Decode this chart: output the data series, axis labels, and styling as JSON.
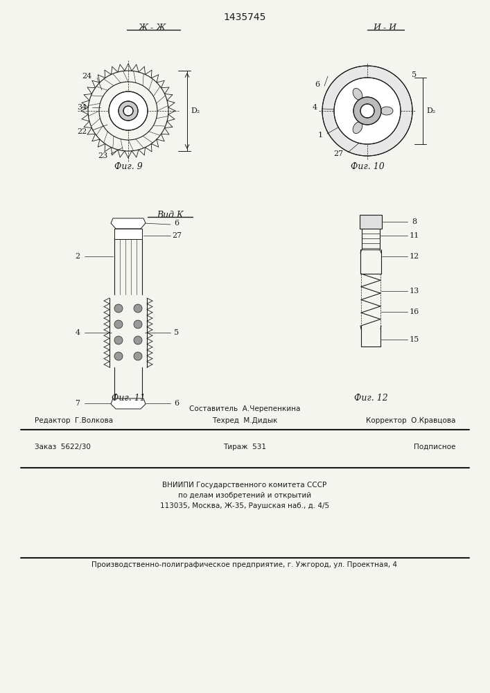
{
  "title": "1435745",
  "bg_color": "#f5f5f0",
  "line_color": "#1a1a1a",
  "fig9_label": "Фиг. 9",
  "fig10_label": "Фиг. 10",
  "fig11_label": "Фиг. 11",
  "fig12_label": "Фиг. 12",
  "section_zh": "Ж - Ж",
  "section_i": "И - И",
  "view_k": "Вид К",
  "footer_line1_left": "Редактор  Г.Волкова",
  "footer_line1_center_top": "Составитель  А.Черепенкина",
  "footer_line1_center_bot": "Техред  М.Дидык",
  "footer_line1_right": "Корректор  О.Кравцова",
  "footer_line2_left": "Заказ  5622/30",
  "footer_line2_center": "Тираж  531",
  "footer_line2_right": "Подписное",
  "footer_vniip": "ВНИИПИ Государственного комитета СССР\nпо делам изобретений и открытий\n113035, Москва, Ж-35, Раушская наб., д. 4/5",
  "footer_last": "Производственно-полиграфическое предприятие, г. Ужгород, ул. Проектная, 4"
}
